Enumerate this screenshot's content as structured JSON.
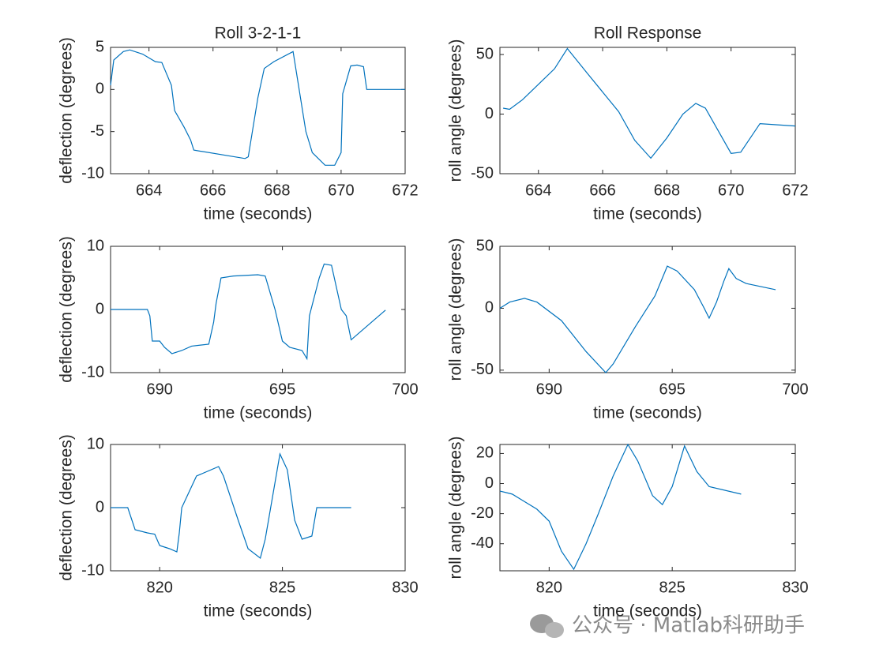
{
  "chart_data": [
    {
      "type": "line",
      "title": "Roll 3-2-1-1",
      "xlabel": "time (seconds)",
      "ylabel": "deflection (degrees)",
      "color": "#0072bd",
      "xlim": [
        662.8,
        672
      ],
      "xticks": [
        664,
        666,
        668,
        670,
        672
      ],
      "ylim": [
        -10,
        5
      ],
      "yticks": [
        -10,
        -5,
        0,
        5
      ],
      "x": [
        662.8,
        662.9,
        663.2,
        663.4,
        663.8,
        664.2,
        664.4,
        664.7,
        664.8,
        665.1,
        665.3,
        665.4,
        667.0,
        667.1,
        667.4,
        667.6,
        667.9,
        668.5,
        668.9,
        669.1,
        669.5,
        669.8,
        670.0,
        670.05,
        670.3,
        670.5,
        670.7,
        670.8,
        672
      ],
      "values": [
        0.5,
        3.5,
        4.5,
        4.7,
        4.2,
        3.3,
        3.2,
        0.5,
        -2.5,
        -4.5,
        -6,
        -7.2,
        -8.2,
        -8,
        -1,
        2.5,
        3.3,
        4.5,
        -5,
        -7.5,
        -9,
        -9,
        -7.5,
        -0.5,
        2.8,
        2.9,
        2.7,
        0,
        0
      ]
    },
    {
      "type": "line",
      "title": "Roll Response",
      "xlabel": "time (seconds)",
      "ylabel": "roll angle (degrees)",
      "color": "#0072bd",
      "xlim": [
        662.8,
        672
      ],
      "xticks": [
        664,
        666,
        668,
        670,
        672
      ],
      "ylim": [
        -50,
        56
      ],
      "yticks": [
        -50,
        0,
        50
      ],
      "x": [
        662.9,
        663.1,
        663.5,
        664,
        664.5,
        664.9,
        665.5,
        666.5,
        667.0,
        667.5,
        668,
        668.5,
        668.9,
        669.2,
        670,
        670.3,
        670.9,
        672
      ],
      "values": [
        5,
        4,
        12,
        25,
        38,
        55,
        35,
        2,
        -22,
        -37,
        -20,
        0,
        9,
        5,
        -33,
        -32,
        -8,
        -10
      ]
    },
    {
      "type": "line",
      "xlabel": "time (seconds)",
      "ylabel": "deflection (degrees)",
      "color": "#0072bd",
      "xlim": [
        688,
        700
      ],
      "xticks": [
        690,
        695,
        700
      ],
      "ylim": [
        -10,
        10
      ],
      "yticks": [
        -10,
        0,
        10
      ],
      "x": [
        688,
        689.5,
        689.6,
        689.7,
        690,
        690.2,
        690.5,
        690.9,
        691.3,
        692.0,
        692.2,
        692.3,
        692.5,
        693,
        694,
        694.3,
        694.7,
        695,
        695.3,
        695.8,
        696,
        696.1,
        696.5,
        696.7,
        697,
        697.4,
        697.6,
        697.8,
        699.2
      ],
      "values": [
        0,
        0,
        -1,
        -5,
        -5,
        -6,
        -7,
        -6.5,
        -5.8,
        -5.5,
        -2,
        1,
        5,
        5.3,
        5.5,
        5.3,
        0,
        -5,
        -6,
        -6.5,
        -7.8,
        -1,
        5,
        7.2,
        7,
        0,
        -1,
        -4.8,
        -0.1
      ]
    },
    {
      "type": "line",
      "xlabel": "time (seconds)",
      "ylabel": "roll angle (degrees)",
      "color": "#0072bd",
      "xlim": [
        688,
        700
      ],
      "xticks": [
        690,
        695,
        700
      ],
      "ylim": [
        -52,
        50
      ],
      "yticks": [
        -50,
        0,
        50
      ],
      "x": [
        688,
        688.4,
        689,
        689.5,
        690.5,
        691.5,
        692.3,
        692.6,
        693.5,
        694.3,
        694.8,
        695.2,
        695.9,
        696.3,
        696.5,
        696.8,
        697.1,
        697.3,
        697.6,
        698,
        699.2
      ],
      "values": [
        0,
        5,
        8,
        5,
        -10,
        -35,
        -52,
        -45,
        -15,
        10,
        34,
        30,
        15,
        0,
        -8,
        5,
        22,
        32,
        24,
        20,
        15
      ]
    },
    {
      "type": "line",
      "xlabel": "time (seconds)",
      "ylabel": "deflection (degrees)",
      "color": "#0072bd",
      "xlim": [
        818,
        830
      ],
      "xticks": [
        820,
        825,
        830
      ],
      "ylim": [
        -10,
        10
      ],
      "yticks": [
        -10,
        0,
        10
      ],
      "x": [
        818,
        818.7,
        819,
        819.5,
        819.8,
        820,
        820.4,
        820.7,
        820.8,
        820.9,
        821.5,
        822.4,
        822.6,
        823.2,
        823.6,
        824.1,
        824.3,
        824.9,
        825.2,
        825.5,
        825.8,
        826.2,
        826.4,
        827.8
      ],
      "values": [
        0,
        0,
        -3.5,
        -4,
        -4.2,
        -6,
        -6.5,
        -7,
        -4,
        0,
        5,
        6.5,
        5,
        -2,
        -6.5,
        -8,
        -5,
        8.5,
        6,
        -2,
        -5,
        -4.5,
        0,
        0
      ]
    },
    {
      "type": "line",
      "xlabel": "time (seconds)",
      "ylabel": "roll angle (degrees)",
      "color": "#0072bd",
      "xlim": [
        818,
        830
      ],
      "xticks": [
        820,
        825,
        830
      ],
      "ylim": [
        -58,
        26
      ],
      "yticks": [
        -40,
        -20,
        0,
        20
      ],
      "x": [
        818,
        818.5,
        819,
        819.5,
        820,
        820.5,
        821,
        821.5,
        822,
        822.6,
        823.2,
        823.6,
        824.2,
        824.6,
        825,
        825.5,
        826,
        826.5,
        827.8
      ],
      "values": [
        -5,
        -7,
        -12,
        -17,
        -25,
        -45,
        -57,
        -40,
        -20,
        5,
        26,
        15,
        -8,
        -14,
        -2,
        25,
        8,
        -2,
        -7
      ]
    }
  ],
  "watermark": "公众号 · Matlab科研助手"
}
